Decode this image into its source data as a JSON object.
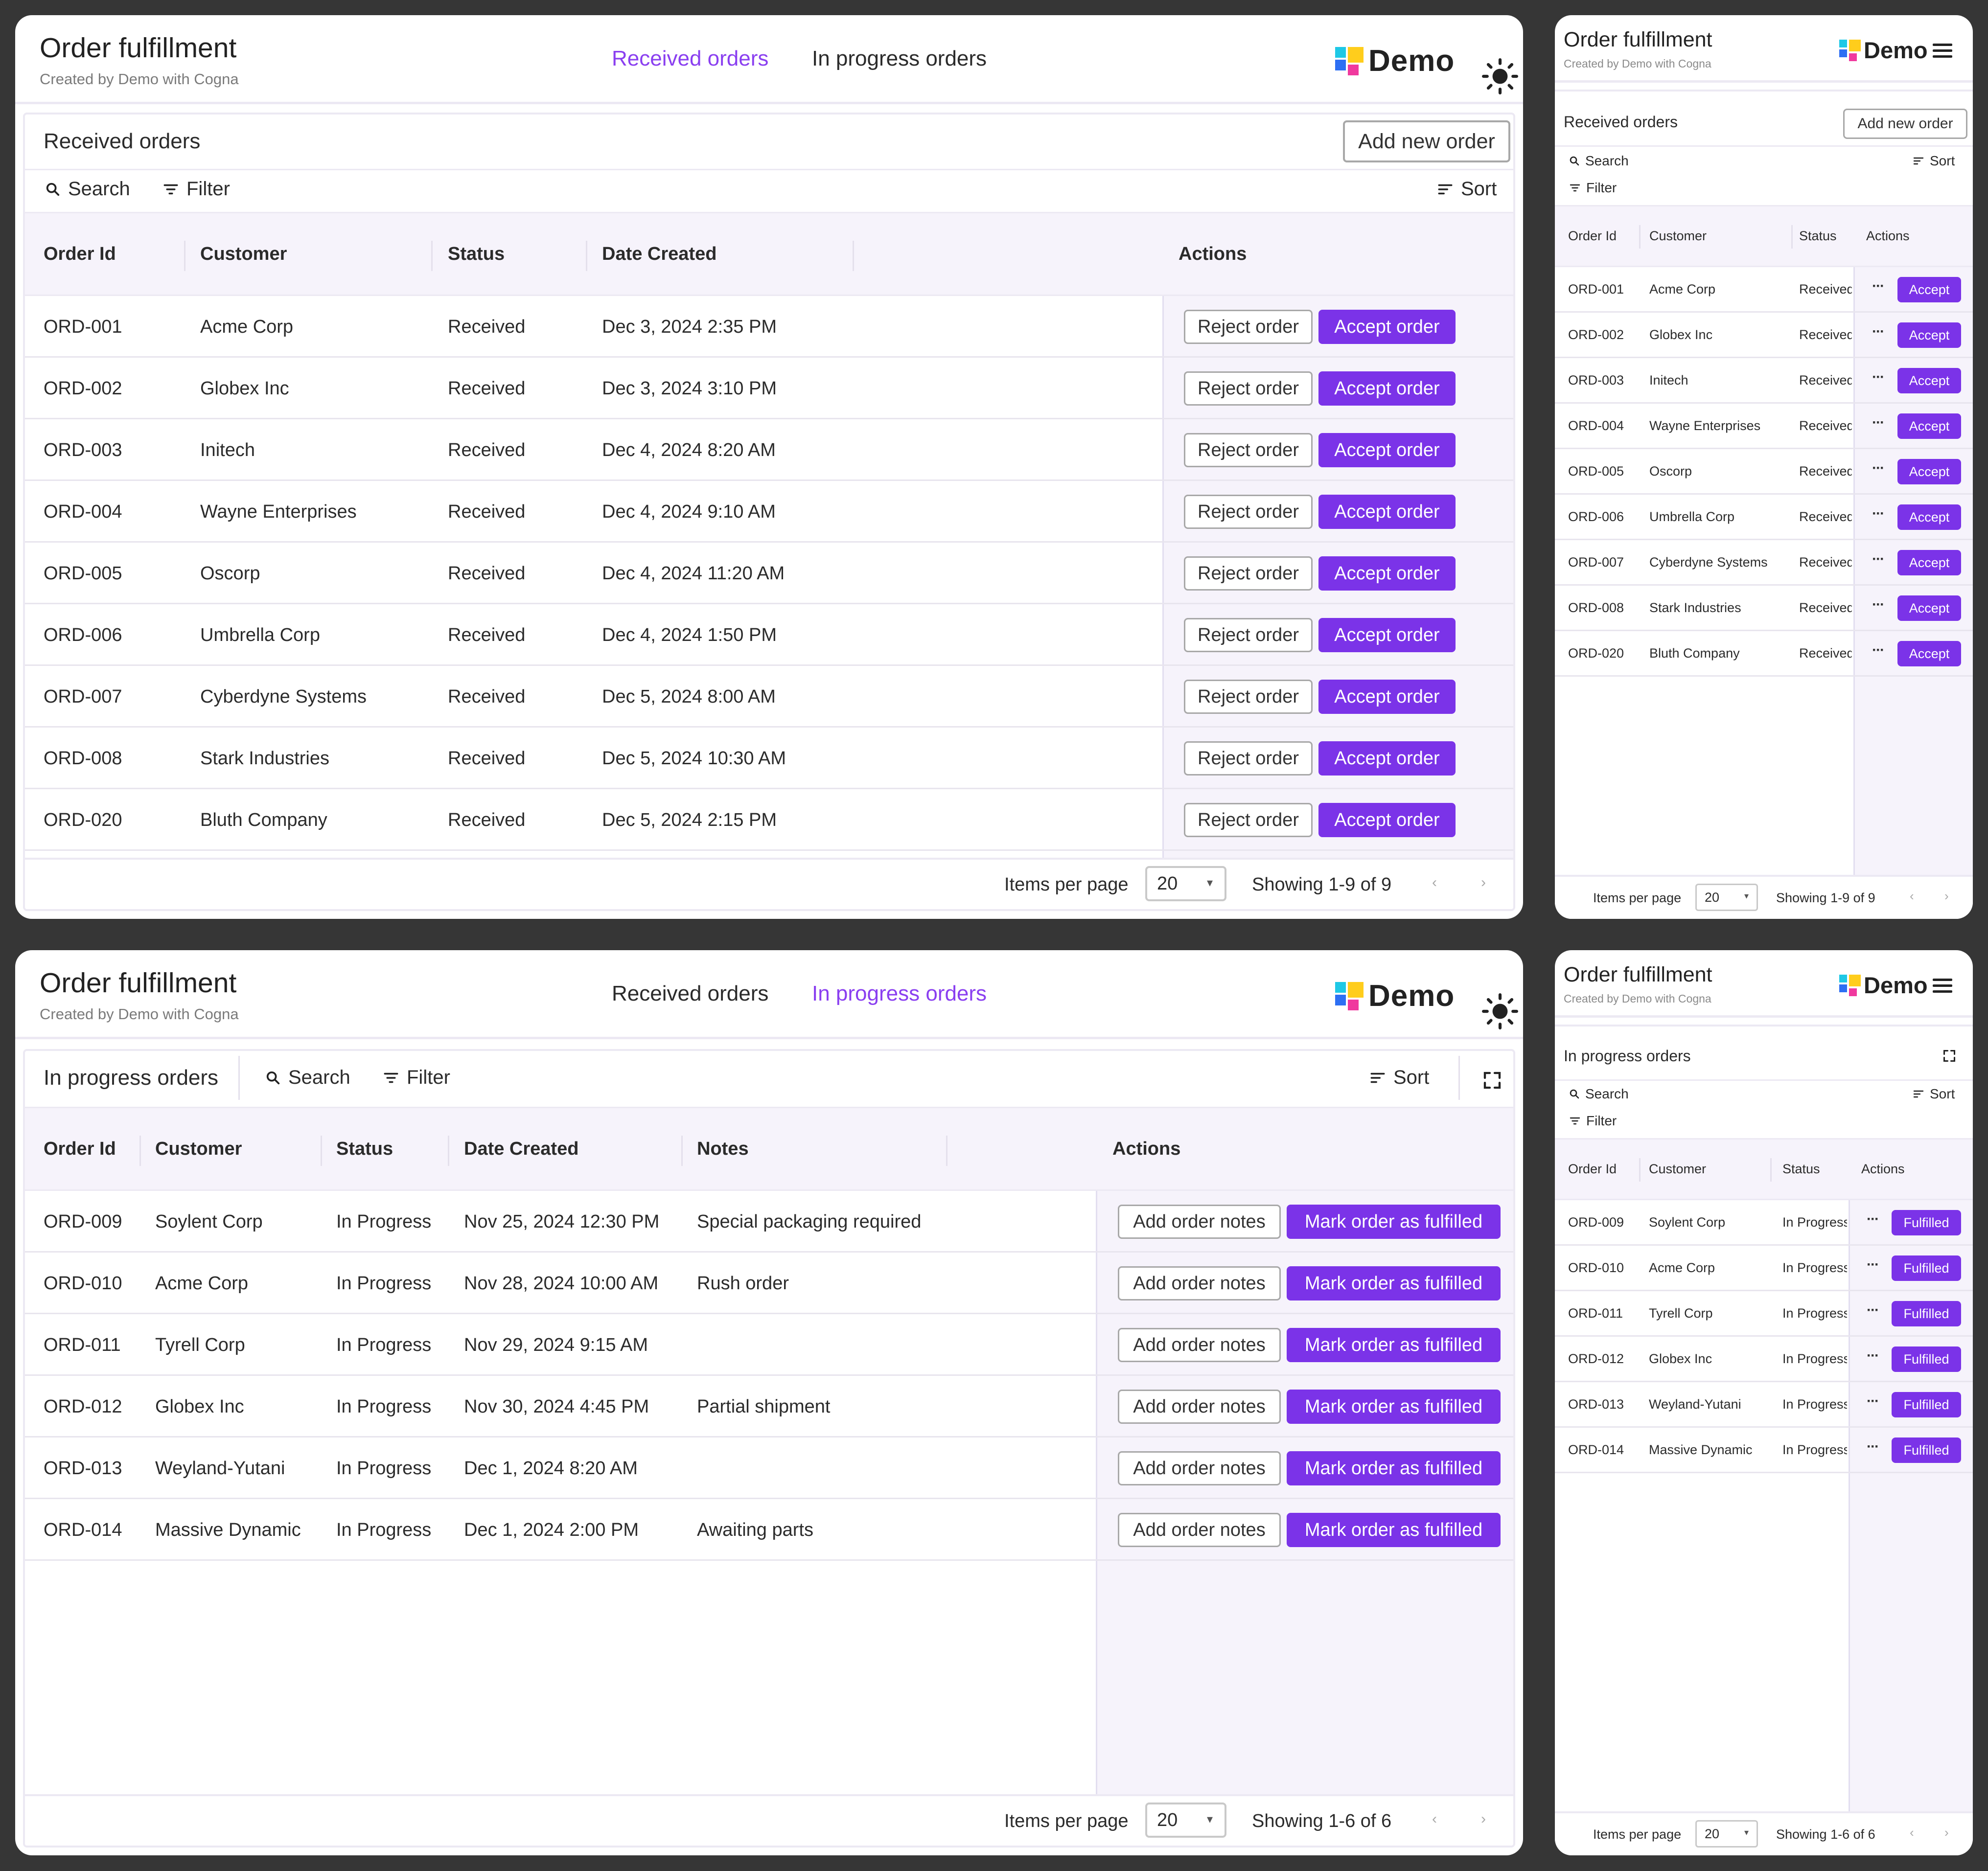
{
  "app": {
    "title": "Order fulfillment",
    "subtitle": "Created by Demo with Cogna",
    "logo_text": "Demo"
  },
  "tabs": {
    "received": "Received orders",
    "in_progress": "In progress orders"
  },
  "toolbar": {
    "search": "Search",
    "filter": "Filter",
    "sort": "Sort"
  },
  "received": {
    "section_title": "Received orders",
    "add_button": "Add new order",
    "columns": [
      "Order Id",
      "Customer",
      "Status",
      "Date Created",
      "Actions"
    ],
    "reject_label": "Reject order",
    "accept_label": "Accept order",
    "accept_short": "Accept",
    "rows": [
      {
        "id": "ORD-001",
        "customer": "Acme Corp",
        "status": "Received",
        "date": "Dec 3, 2024 2:35 PM"
      },
      {
        "id": "ORD-002",
        "customer": "Globex Inc",
        "status": "Received",
        "date": "Dec 3, 2024 3:10 PM"
      },
      {
        "id": "ORD-003",
        "customer": "Initech",
        "status": "Received",
        "date": "Dec 4, 2024 8:20 AM"
      },
      {
        "id": "ORD-004",
        "customer": "Wayne Enterprises",
        "status": "Received",
        "date": "Dec 4, 2024 9:10 AM"
      },
      {
        "id": "ORD-005",
        "customer": "Oscorp",
        "status": "Received",
        "date": "Dec 4, 2024 11:20 AM"
      },
      {
        "id": "ORD-006",
        "customer": "Umbrella Corp",
        "status": "Received",
        "date": "Dec 4, 2024 1:50 PM"
      },
      {
        "id": "ORD-007",
        "customer": "Cyberdyne Systems",
        "status": "Received",
        "date": "Dec 5, 2024 8:00 AM"
      },
      {
        "id": "ORD-008",
        "customer": "Stark Industries",
        "status": "Received",
        "date": "Dec 5, 2024 10:30 AM"
      },
      {
        "id": "ORD-020",
        "customer": "Bluth Company",
        "status": "Received",
        "date": "Dec 5, 2024 2:15 PM"
      }
    ],
    "footer": {
      "items_per_page_label": "Items per page",
      "items_per_page": "20",
      "showing": "Showing 1-9 of 9"
    }
  },
  "in_progress": {
    "section_title": "In progress orders",
    "columns": [
      "Order Id",
      "Customer",
      "Status",
      "Date Created",
      "Notes",
      "Actions"
    ],
    "notes_label": "Add order notes",
    "fulfill_label": "Mark order as fulfilled",
    "fulfill_short": "Fulfilled",
    "rows": [
      {
        "id": "ORD-009",
        "customer": "Soylent Corp",
        "status": "In Progress",
        "date": "Nov 25, 2024 12:30 PM",
        "notes": "Special packaging required"
      },
      {
        "id": "ORD-010",
        "customer": "Acme Corp",
        "status": "In Progress",
        "date": "Nov 28, 2024 10:00 AM",
        "notes": "Rush order"
      },
      {
        "id": "ORD-011",
        "customer": "Tyrell Corp",
        "status": "In Progress",
        "date": "Nov 29, 2024 9:15 AM",
        "notes": ""
      },
      {
        "id": "ORD-012",
        "customer": "Globex Inc",
        "status": "In Progress",
        "date": "Nov 30, 2024 4:45 PM",
        "notes": "Partial shipment"
      },
      {
        "id": "ORD-013",
        "customer": "Weyland-Yutani",
        "status": "In Progress",
        "date": "Dec 1, 2024 8:20 AM",
        "notes": ""
      },
      {
        "id": "ORD-014",
        "customer": "Massive Dynamic",
        "status": "In Progress",
        "date": "Dec 1, 2024 2:00 PM",
        "notes": "Awaiting parts"
      }
    ],
    "footer": {
      "items_per_page_label": "Items per page",
      "items_per_page": "20",
      "showing": "Showing 1-6 of 6"
    }
  },
  "icons": {
    "search": "search-icon",
    "filter": "filter-icon",
    "sort": "sort-icon",
    "theme": "sun-icon",
    "menu": "hamburger-menu-icon",
    "fullscreen": "fullscreen-icon",
    "more": "more-horizontal-icon",
    "prev": "chevron-left-icon",
    "next": "chevron-right-icon",
    "dropdown": "caret-down-icon"
  },
  "colors": {
    "accent": "#7b33e8",
    "active_tab": "#8a3ff0",
    "background": "#363636",
    "header_bg": "#f6f3fb"
  }
}
